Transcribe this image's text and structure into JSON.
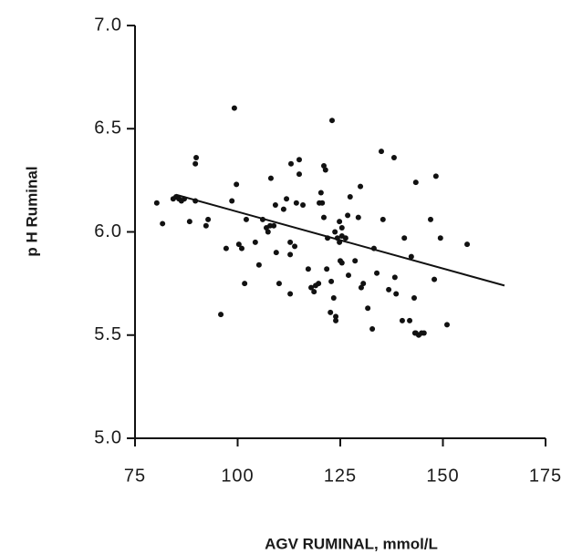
{
  "chart_data": {
    "type": "scatter",
    "xlabel": "AGV RUMINAL, mmol/L",
    "ylabel": "p H Ruminal",
    "xlim": [
      75,
      175
    ],
    "ylim": [
      5,
      7
    ],
    "xticks": [
      75,
      100,
      125,
      150,
      175
    ],
    "yticks": [
      {
        "value": 5,
        "label": "5.0"
      },
      5.5,
      {
        "value": 6,
        "label": "6.0"
      },
      6.5,
      {
        "value": 7,
        "label": "7.0"
      }
    ],
    "color": "#111111",
    "x": [
      80.3,
      81.7,
      84.3,
      85.0,
      85.7,
      86.3,
      87.0,
      88.3,
      89.7,
      89.9,
      89.7,
      92.3,
      92.8,
      95.9,
      97.2,
      98.6,
      99.2,
      99.7,
      100.3,
      101.0,
      101.7,
      102.1,
      104.3,
      105.2,
      106.1,
      107.0,
      107.4,
      107.9,
      109.2,
      108.8,
      108.1,
      109.4,
      110.1,
      111.2,
      111.9,
      112.8,
      112.8,
      112.8,
      113.0,
      113.9,
      114.3,
      115.0,
      115.0,
      115.9,
      117.2,
      117.9,
      118.6,
      119.0,
      119.7,
      119.9,
      120.3,
      120.6,
      121.0,
      121.0,
      121.7,
      121.4,
      121.9,
      122.8,
      123.0,
      122.6,
      123.4,
      123.9,
      123.9,
      123.7,
      124.3,
      124.8,
      124.8,
      125.0,
      125.4,
      125.4,
      125.4,
      126.3,
      127.0,
      126.8,
      127.4,
      128.6,
      129.4,
      129.9,
      130.1,
      130.6,
      131.7,
      132.8,
      133.2,
      133.9,
      135.0,
      135.4,
      136.8,
      138.1,
      138.3,
      138.6,
      140.1,
      140.6,
      141.9,
      142.3,
      143.0,
      143.2,
      143.4,
      143.4,
      144.1,
      144.8,
      145.4,
      147.0,
      147.9,
      148.3,
      149.4,
      151.0,
      155.9
    ],
    "y": [
      6.14,
      6.04,
      6.16,
      6.17,
      6.16,
      6.15,
      6.16,
      6.05,
      6.33,
      6.36,
      6.15,
      6.03,
      6.06,
      5.6,
      5.92,
      6.15,
      6.6,
      6.23,
      5.94,
      5.92,
      5.75,
      6.06,
      5.95,
      5.84,
      6.06,
      6.02,
      6.0,
      6.03,
      6.13,
      6.03,
      6.26,
      5.9,
      5.75,
      6.11,
      6.16,
      5.7,
      5.89,
      5.95,
      6.33,
      5.93,
      6.14,
      6.35,
      6.28,
      6.13,
      5.82,
      5.73,
      5.71,
      5.74,
      5.75,
      6.14,
      6.19,
      6.14,
      6.32,
      6.07,
      5.82,
      6.3,
      5.97,
      5.76,
      6.54,
      5.61,
      5.68,
      5.59,
      5.57,
      6.0,
      5.97,
      6.05,
      5.95,
      5.86,
      6.02,
      5.98,
      5.85,
      5.97,
      5.79,
      6.08,
      6.17,
      5.86,
      6.07,
      6.22,
      5.73,
      5.75,
      5.63,
      5.53,
      5.92,
      5.8,
      6.39,
      6.06,
      5.72,
      6.36,
      5.78,
      5.7,
      5.57,
      5.97,
      5.57,
      5.88,
      5.68,
      5.51,
      6.24,
      5.51,
      5.5,
      5.51,
      5.51,
      6.06,
      5.77,
      6.27,
      5.97,
      5.55,
      5.94
    ],
    "fit": {
      "x": [
        85,
        165
      ],
      "y": [
        6.18,
        5.74
      ]
    }
  }
}
